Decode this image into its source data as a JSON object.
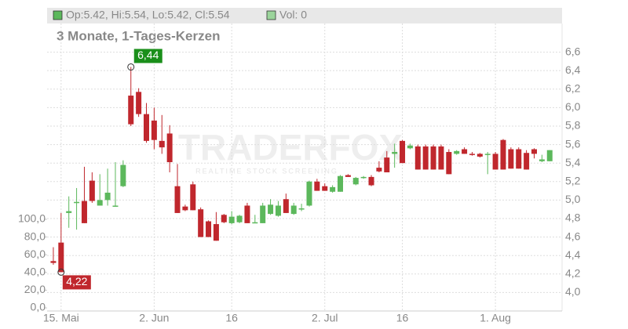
{
  "chart_data": {
    "type": "candlestick",
    "title": "3 Monate, 1-Tages-Kerzen",
    "legend_ohlc": "Op:5.42, Hi:5.54, Lo:5.42, Cl:5.54",
    "legend_volume": "Vol: 0",
    "watermark": {
      "title": "TRADERFOX",
      "subtitle": "REALTIME STOCK SCREENING"
    },
    "high_label": "6,44",
    "low_label": "4,22",
    "up_color": "#5cb85c",
    "down_color": "#c0272d",
    "grid": true,
    "categories": [
      null,
      "15. Mai",
      null,
      null,
      null,
      null,
      null,
      null,
      null,
      null,
      null,
      null,
      null,
      "2. Jun",
      null,
      null,
      null,
      null,
      null,
      null,
      null,
      null,
      null,
      "16",
      null,
      null,
      null,
      null,
      null,
      null,
      null,
      null,
      null,
      null,
      null,
      "2. Jul",
      null,
      null,
      null,
      null,
      null,
      null,
      null,
      null,
      null,
      "16",
      null,
      null,
      null,
      null,
      null,
      null,
      null,
      null,
      null,
      null,
      null,
      "1. Aug",
      null,
      null,
      null,
      null,
      null,
      null,
      null
    ],
    "open": [
      4.34,
      4.54,
      4.86,
      4.97,
      4.99,
      5.21,
      4.94,
      5.0,
      4.93,
      5.15,
      6.13,
      6.17,
      5.93,
      5.86,
      5.64,
      5.72,
      5.15,
      4.93,
      5.17,
      4.9,
      4.77,
      4.74,
      4.84,
      4.75,
      4.76,
      4.94,
      4.76,
      4.75,
      4.85,
      4.83,
      5.01,
      4.85,
      4.9,
      4.94,
      5.2,
      5.15,
      5.09,
      5.09,
      5.27,
      5.17,
      5.24,
      5.25,
      5.35,
      5.46,
      5.5,
      5.64,
      5.56,
      5.58,
      5.58,
      5.58,
      5.58,
      5.52,
      5.5,
      5.55,
      5.5,
      5.5,
      5.49,
      5.5,
      5.65,
      5.55,
      5.55,
      5.51,
      5.55,
      5.42,
      5.42
    ],
    "high": [
      4.49,
      4.86,
      5.04,
      5.13,
      5.36,
      5.3,
      5.28,
      5.34,
      5.41,
      5.43,
      6.44,
      6.21,
      6.05,
      6.0,
      5.92,
      5.81,
      5.39,
      4.95,
      5.2,
      4.92,
      4.78,
      4.87,
      4.85,
      4.88,
      4.84,
      4.97,
      4.84,
      4.97,
      5.01,
      4.99,
      5.07,
      4.97,
      4.96,
      5.21,
      5.23,
      5.18,
      5.16,
      5.27,
      5.28,
      5.25,
      5.26,
      5.27,
      5.42,
      5.53,
      5.61,
      5.65,
      5.61,
      5.6,
      5.6,
      5.6,
      5.6,
      5.55,
      5.54,
      5.57,
      5.52,
      5.51,
      5.52,
      5.52,
      5.66,
      5.57,
      5.57,
      5.54,
      5.56,
      5.49,
      5.54
    ],
    "low": [
      4.3,
      4.22,
      4.7,
      4.68,
      4.75,
      4.97,
      4.94,
      4.94,
      4.93,
      5.14,
      5.8,
      5.9,
      5.62,
      5.55,
      5.5,
      5.3,
      4.86,
      4.88,
      4.89,
      4.6,
      4.6,
      4.56,
      4.75,
      4.74,
      4.75,
      4.75,
      4.75,
      4.75,
      4.84,
      4.82,
      4.86,
      4.84,
      4.88,
      4.93,
      5.1,
      5.1,
      5.08,
      5.09,
      5.25,
      5.16,
      5.23,
      5.15,
      5.3,
      5.3,
      5.35,
      5.4,
      5.55,
      5.33,
      5.33,
      5.33,
      5.33,
      5.28,
      5.49,
      5.5,
      5.48,
      5.46,
      5.28,
      5.33,
      5.33,
      5.34,
      5.34,
      5.33,
      5.45,
      5.41,
      5.42
    ],
    "close": [
      4.32,
      4.22,
      4.88,
      4.98,
      4.75,
      4.99,
      5.0,
      5.08,
      4.94,
      5.38,
      5.82,
      5.93,
      5.64,
      5.65,
      5.57,
      5.41,
      4.86,
      4.89,
      4.89,
      4.6,
      4.6,
      4.56,
      4.76,
      4.82,
      4.83,
      4.75,
      4.76,
      4.94,
      4.95,
      4.94,
      4.86,
      4.94,
      4.91,
      5.2,
      5.1,
      5.1,
      5.14,
      5.26,
      5.25,
      5.24,
      5.25,
      5.16,
      5.31,
      5.3,
      5.52,
      5.4,
      5.59,
      5.33,
      5.33,
      5.33,
      5.33,
      5.28,
      5.53,
      5.5,
      5.49,
      5.47,
      5.5,
      5.33,
      5.33,
      5.34,
      5.34,
      5.33,
      5.5,
      5.44,
      5.54
    ],
    "ylim": [
      3.8,
      6.91
    ],
    "yticks": [
      {
        "value": 4.0,
        "label": "4,0"
      },
      {
        "value": 4.2,
        "label": "4,2"
      },
      {
        "value": 4.4,
        "label": "4,4"
      },
      {
        "value": 4.6,
        "label": "4,6"
      },
      {
        "value": 4.8,
        "label": "4,8"
      },
      {
        "value": 5.0,
        "label": "5,0"
      },
      {
        "value": 5.2,
        "label": "5,2"
      },
      {
        "value": 5.4,
        "label": "5,4"
      },
      {
        "value": 5.6,
        "label": "5,6"
      },
      {
        "value": 5.8,
        "label": "5,8"
      },
      {
        "value": 6.0,
        "label": "6,0"
      },
      {
        "value": 6.2,
        "label": "6,2"
      },
      {
        "value": 6.4,
        "label": "6,4"
      },
      {
        "value": 6.6,
        "label": "6,6"
      }
    ],
    "y2lim": [
      -3.5,
      321
    ],
    "y2ticks": [
      {
        "value": 0,
        "label": "0,0"
      },
      {
        "value": 20,
        "label": "20,0"
      },
      {
        "value": 40,
        "label": "40,0"
      },
      {
        "value": 60,
        "label": "60,0"
      },
      {
        "value": 80,
        "label": "80,0"
      },
      {
        "value": 100,
        "label": "100,0"
      }
    ]
  }
}
